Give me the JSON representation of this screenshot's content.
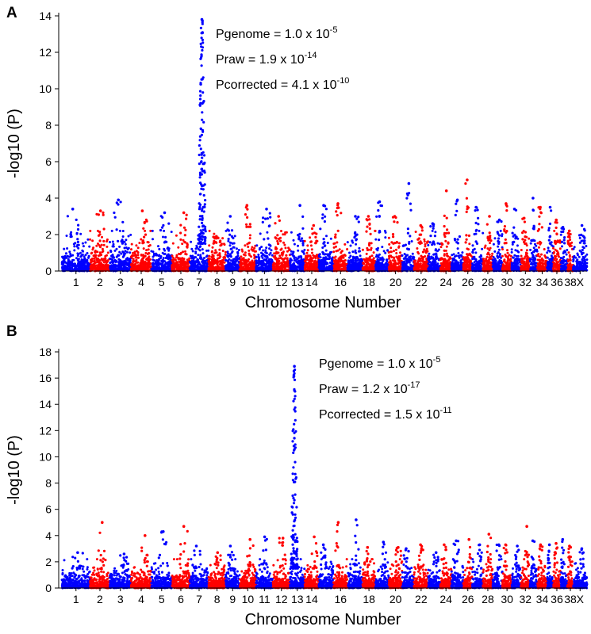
{
  "chart_data": [
    {
      "panel_label": "A",
      "type": "scatter",
      "title": "",
      "xlabel": "Chromosome Number",
      "ylabel": "-log10 (P)",
      "ylim": [
        0,
        14
      ],
      "yticks": [
        0,
        2,
        4,
        6,
        8,
        10,
        12,
        14
      ],
      "chromosomes": [
        "1",
        "2",
        "3",
        "4",
        "5",
        "6",
        "7",
        "8",
        "9",
        "10",
        "11",
        "12",
        "13",
        "14",
        "15",
        "16",
        "17",
        "18",
        "19",
        "20",
        "21",
        "22",
        "23",
        "24",
        "25",
        "26",
        "27",
        "28",
        "29",
        "30",
        "31",
        "32",
        "33",
        "34",
        "35",
        "36",
        "37",
        "38",
        "X"
      ],
      "x_tick_labels": [
        "1",
        "2",
        "3",
        "4",
        "5",
        "6",
        "7",
        "8",
        "9",
        "10",
        "11",
        "12",
        "13",
        "14",
        "16",
        "18",
        "20",
        "22",
        "24",
        "26",
        "28",
        "30",
        "32",
        "34",
        "36",
        "38",
        "X"
      ],
      "colors": [
        "#0000ff",
        "#ff0000"
      ],
      "chromosome_max": [
        3.4,
        3.3,
        3.9,
        3.3,
        3.2,
        3.2,
        13.8,
        1.9,
        3.0,
        3.6,
        3.4,
        3.0,
        3.6,
        2.5,
        3.6,
        3.7,
        3.0,
        3.0,
        3.8,
        3.0,
        4.8,
        2.5,
        2.6,
        4.4,
        3.9,
        5.0,
        3.5,
        3.0,
        2.8,
        3.7,
        3.4,
        2.9,
        4.0,
        3.5,
        3.5,
        2.8,
        2.4,
        2.2,
        2.5
      ],
      "annotations": [
        {
          "label": "Pgenome = 1.0 x 10",
          "exponent": "-5"
        },
        {
          "label": "Praw = 1.9 x 10",
          "exponent": "-14"
        },
        {
          "label": "Pcorrected = 4.1 x 10",
          "exponent": "-10"
        }
      ]
    },
    {
      "panel_label": "B",
      "type": "scatter",
      "title": "",
      "xlabel": "Chromosome Number",
      "ylabel": "-log10 (P)",
      "ylim": [
        0,
        18
      ],
      "yticks": [
        0,
        2,
        4,
        6,
        8,
        10,
        12,
        14,
        16,
        18
      ],
      "chromosomes": [
        "1",
        "2",
        "3",
        "4",
        "5",
        "6",
        "7",
        "8",
        "9",
        "10",
        "11",
        "12",
        "13",
        "14",
        "15",
        "16",
        "17",
        "18",
        "19",
        "20",
        "21",
        "22",
        "23",
        "24",
        "25",
        "26",
        "27",
        "28",
        "29",
        "30",
        "31",
        "32",
        "33",
        "34",
        "35",
        "36",
        "37",
        "38",
        "X"
      ],
      "x_tick_labels": [
        "1",
        "2",
        "3",
        "4",
        "5",
        "6",
        "7",
        "8",
        "9",
        "10",
        "11",
        "12",
        "13",
        "14",
        "16",
        "18",
        "20",
        "22",
        "24",
        "26",
        "28",
        "30",
        "32",
        "34",
        "36",
        "38",
        "X"
      ],
      "colors": [
        "#0000ff",
        "#ff0000"
      ],
      "chromosome_max": [
        2.7,
        5.0,
        2.6,
        4.0,
        4.3,
        4.7,
        3.2,
        2.7,
        3.2,
        3.7,
        3.9,
        3.8,
        16.9,
        3.9,
        3.3,
        5.0,
        5.2,
        3.1,
        3.5,
        3.1,
        3.0,
        3.3,
        2.7,
        3.3,
        3.6,
        3.7,
        3.3,
        4.1,
        3.3,
        3.3,
        3.2,
        4.7,
        3.6,
        3.3,
        3.3,
        3.4,
        3.7,
        3.2,
        3.0
      ],
      "annotations": [
        {
          "label": "Pgenome = 1.0 x 10",
          "exponent": "-5"
        },
        {
          "label": "Praw = 1.2 x 10",
          "exponent": "-17"
        },
        {
          "label": "Pcorrected = 1.5 x 10",
          "exponent": "-11"
        }
      ]
    }
  ]
}
